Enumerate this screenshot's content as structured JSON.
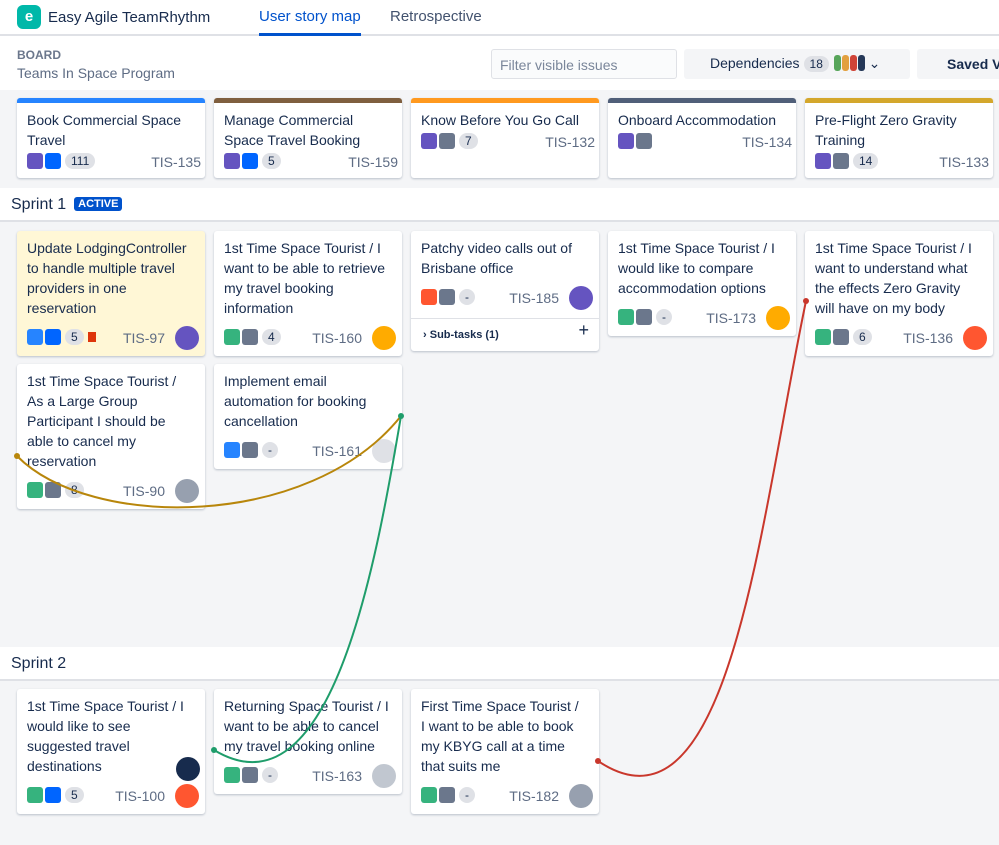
{
  "app": {
    "name": "Easy Agile TeamRhythm",
    "tabs": [
      "User story map",
      "Retrospective"
    ]
  },
  "toolbar": {
    "board_label": "BOARD",
    "board_name": "Teams In Space Program",
    "filter_placeholder": "Filter visible issues",
    "dependencies": "Dependencies",
    "dependencies_count": 18,
    "dependency_colors": [
      "#57a55a",
      "#e2a03f",
      "#d04437",
      "#253858"
    ],
    "saved": "Saved V"
  },
  "epics": [
    {
      "title": "Book Commercial Space Travel",
      "color": "#2684ff",
      "icons": [
        "#6554c0",
        "#0065ff"
      ],
      "count": 111,
      "key": "TIS-135"
    },
    {
      "title": "Manage Commercial Space Travel Booking",
      "color": "#7f5f3f",
      "icons": [
        "#6554c0",
        "#0065ff"
      ],
      "count": 5,
      "key": "TIS-159"
    },
    {
      "title": "Know Before You Go Call",
      "color": "#ff991f",
      "icons": [
        "#6554c0",
        "#6b778c"
      ],
      "count": 7,
      "key": "TIS-132"
    },
    {
      "title": "Onboard Accommodation",
      "color": "#505f79",
      "icons": [
        "#6554c0",
        "#6b778c"
      ],
      "key": "TIS-134"
    },
    {
      "title": "Pre-Flight Zero Gravity Training",
      "color": "#d4a72c",
      "icons": [
        "#6554c0",
        "#6b778c"
      ],
      "count": 14,
      "key": "TIS-133"
    }
  ],
  "sprints": [
    {
      "name": "Sprint 1",
      "status": "ACTIVE",
      "columns": [
        [
          {
            "summary": "Update LodgingController to handle multiple travel providers in one reservation",
            "highlight": "#fff7d6",
            "icons": [
              "#2684ff",
              "#0065ff"
            ],
            "points": 5,
            "flag": "#de350b",
            "key": "TIS-97",
            "avatar": "#6554c0"
          },
          {
            "summary": "1st Time Space Tourist / As a Large Group Participant I should be able to cancel my reservation",
            "icons": [
              "#36b37e",
              "#6b778c"
            ],
            "points": 8,
            "key": "TIS-90",
            "avatar": "#97a0af"
          }
        ],
        [
          {
            "summary": "1st Time Space Tourist / I want to be able to retrieve my travel booking information",
            "icons": [
              "#36b37e",
              "#6b778c"
            ],
            "points": 4,
            "key": "TIS-160",
            "avatar": "#ffab00"
          },
          {
            "summary": "Implement email automation for booking cancellation",
            "icons": [
              "#2684ff",
              "#6b778c"
            ],
            "points": "-",
            "key": "TIS-161",
            "avatar": "#dfe1e6"
          }
        ],
        [
          {
            "summary": "Patchy video calls out of Brisbane office",
            "icons": [
              "#ff5630",
              "#6b778c"
            ],
            "points": "-",
            "key": "TIS-185",
            "avatar": "#6554c0",
            "subtasks": "Sub-tasks (1)"
          }
        ],
        [
          {
            "summary": "1st Time Space Tourist / I would like to compare accommodation options",
            "icons": [
              "#36b37e",
              "#6b778c"
            ],
            "points": "-",
            "key": "TIS-173",
            "avatar": "#ffab00"
          }
        ],
        [
          {
            "summary": "1st Time Space Tourist / I want to understand what the effects Zero Gravity will have on my body",
            "icons": [
              "#36b37e",
              "#6b778c"
            ],
            "points": 6,
            "key": "TIS-136",
            "avatar": "#ff5630"
          }
        ]
      ]
    },
    {
      "name": "Sprint 2",
      "columns": [
        [
          {
            "summary": "1st Time Space Tourist / I would like to see suggested travel destinations",
            "icons": [
              "#36b37e",
              "#0065ff"
            ],
            "points": 5,
            "key": "TIS-100",
            "avatar": "#ff5630",
            "linked": true
          }
        ],
        [
          {
            "summary": "Returning Space Tourist / I want to be able to cancel my travel booking online",
            "icons": [
              "#36b37e",
              "#6b778c"
            ],
            "points": "-",
            "key": "TIS-163",
            "avatar": "#c1c7d0"
          }
        ],
        [
          {
            "summary": "First Time Space Tourist / I want to be able to book my KBYG call at a time that suits me",
            "icons": [
              "#36b37e",
              "#6b778c"
            ],
            "points": "-",
            "key": "TIS-182",
            "avatar": "#97a0af"
          }
        ]
      ]
    }
  ]
}
